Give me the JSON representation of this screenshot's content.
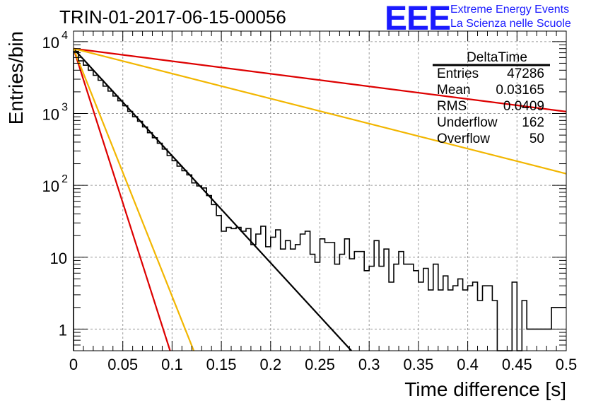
{
  "header": {
    "title": "TRIN-01-2017-06-15-00056",
    "logo_text": "EEE",
    "logo_line1": "Extreme Energy Events",
    "logo_line2": "La Scienza nelle Scuole"
  },
  "stats": {
    "title": "DeltaTime",
    "rows": [
      {
        "label": "Entries",
        "value": "47286"
      },
      {
        "label": "Mean",
        "value": "0.03165"
      },
      {
        "label": "RMS",
        "value": "0.0409"
      },
      {
        "label": "Underflow",
        "value": "162"
      },
      {
        "label": "Overflow",
        "value": "50"
      }
    ]
  },
  "chart_data": {
    "type": "histogram",
    "xlabel": "Time difference [s]",
    "ylabel": "Entries/bin",
    "xlim": [
      0,
      0.5
    ],
    "ylim": [
      0.5,
      14000
    ],
    "yscale": "log",
    "grid": true,
    "legend": "top-right",
    "xticks": [
      "0",
      "0.05",
      "0.1",
      "0.15",
      "0.2",
      "0.25",
      "0.3",
      "0.35",
      "0.4",
      "0.45",
      "0.5"
    ],
    "yticks": [
      {
        "value": 1,
        "base": "1",
        "exp": ""
      },
      {
        "value": 10,
        "base": "10",
        "exp": ""
      },
      {
        "value": 100,
        "base": "10",
        "exp": "2"
      },
      {
        "value": 1000,
        "base": "10",
        "exp": "3"
      },
      {
        "value": 10000,
        "base": "10",
        "exp": "4"
      }
    ],
    "histogram": {
      "bin_width": 0.005,
      "start": 0,
      "values": [
        7300,
        5400,
        4700,
        4000,
        3400,
        2900,
        2400,
        2050,
        1750,
        1500,
        1280,
        1070,
        900,
        780,
        650,
        540,
        460,
        385,
        320,
        260,
        220,
        185,
        160,
        140,
        108,
        98,
        92,
        72,
        54,
        38,
        23,
        26,
        25,
        26,
        23,
        25,
        15,
        21,
        27,
        14,
        19,
        24,
        13,
        17,
        13,
        15,
        21,
        23,
        11,
        8.5,
        18,
        16,
        16,
        8,
        11,
        18,
        9.5,
        12,
        12,
        6.5,
        7.5,
        17,
        7.5,
        13,
        4.5,
        8,
        12,
        8,
        8,
        6.5,
        4.5,
        7,
        3.5,
        8,
        3.5,
        5.5,
        3.5,
        4,
        5,
        3.5,
        4,
        4.5,
        2.5,
        4,
        4,
        2.5,
        0.5,
        0.5,
        0.3,
        4.5,
        0.5,
        2.5,
        1,
        1,
        1,
        1,
        1,
        2,
        2,
        2
      ]
    },
    "fits": [
      {
        "color": "#000000",
        "points": [
          [
            0,
            8000
          ],
          [
            0.282,
            0.5
          ]
        ]
      },
      {
        "color": "#dd0000",
        "points": [
          [
            0,
            8000
          ],
          [
            0.5,
            1060
          ]
        ]
      },
      {
        "color": "#f2b600",
        "points": [
          [
            0,
            8000
          ],
          [
            0.5,
            145
          ]
        ]
      },
      {
        "color": "#dd0000",
        "points": [
          [
            0,
            8000
          ],
          [
            0.098,
            0.5
          ]
        ]
      },
      {
        "color": "#f2b600",
        "points": [
          [
            0,
            8000
          ],
          [
            0.122,
            0.5
          ]
        ]
      }
    ]
  }
}
